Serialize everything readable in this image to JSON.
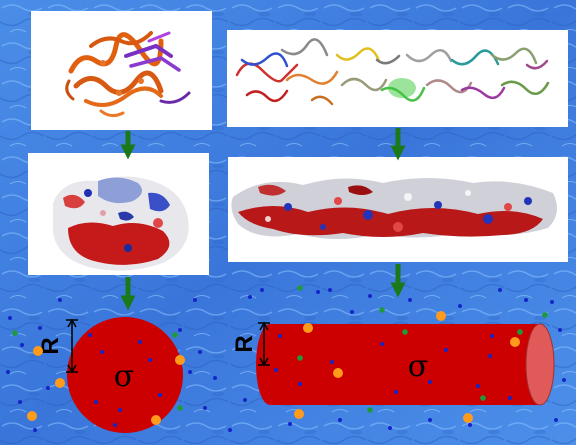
{
  "labels": {
    "sphere_radius": "R",
    "sphere_charge": "σ",
    "cylinder_radius": "R",
    "cylinder_charge": "σ"
  },
  "colors": {
    "background_water": "#3f7fe0",
    "arrow": "#1a7a1a",
    "macroion": "#cc0000",
    "cylinder_cap": "#e05a5a",
    "ion_blue": "#1426c8",
    "ion_green": "#1f9a3a",
    "ion_orange": "#ff9a1a"
  },
  "panels": {
    "left_top": "protein-ribbon-structure",
    "left_middle": "protein-electrostatic-surface",
    "right_top": "filament-ribbon-structure",
    "right_middle": "filament-electrostatic-surface",
    "left_bottom": "charged-sphere-model",
    "right_bottom": "charged-cylinder-model"
  }
}
